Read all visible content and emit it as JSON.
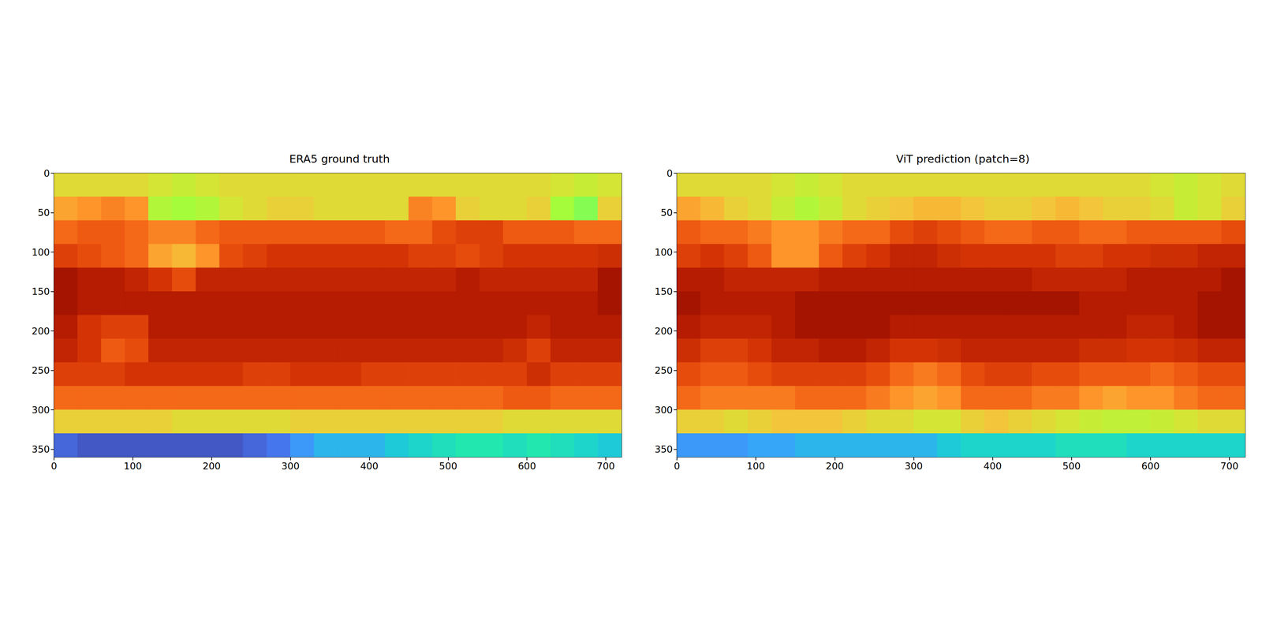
{
  "chart_data": [
    {
      "type": "heatmap",
      "title": "ERA5 ground truth",
      "color": "turbo",
      "grid": false,
      "xlim": [
        0,
        720
      ],
      "ylim": [
        0,
        360
      ],
      "xticks": [
        0,
        100,
        200,
        300,
        400,
        500,
        600,
        700
      ],
      "yticks": [
        0,
        50,
        100,
        150,
        200,
        250,
        300,
        350
      ],
      "x": [
        15,
        45,
        75,
        105,
        135,
        165,
        195,
        225,
        255,
        285,
        315,
        345,
        375,
        405,
        435,
        465,
        495,
        525,
        555,
        585,
        615,
        645,
        675,
        705
      ],
      "y": [
        15,
        45,
        75,
        105,
        135,
        165,
        195,
        225,
        255,
        285,
        315,
        345
      ],
      "color_range": [
        220,
        310
      ],
      "cells": [
        [
          274,
          274,
          274,
          274,
          272,
          270,
          272,
          274,
          274,
          274,
          274,
          274,
          274,
          274,
          274,
          274,
          274,
          274,
          274,
          274,
          274,
          272,
          270,
          272
        ],
        [
          283,
          285,
          287,
          285,
          267,
          265,
          267,
          272,
          274,
          276,
          276,
          274,
          274,
          274,
          274,
          287,
          285,
          276,
          274,
          274,
          276,
          265,
          262,
          276
        ],
        [
          290,
          292,
          292,
          290,
          287,
          287,
          290,
          292,
          292,
          292,
          292,
          292,
          292,
          292,
          290,
          290,
          294,
          296,
          296,
          292,
          292,
          292,
          290,
          290
        ],
        [
          296,
          294,
          292,
          290,
          283,
          280,
          285,
          294,
          296,
          298,
          298,
          298,
          298,
          298,
          298,
          296,
          296,
          294,
          296,
          298,
          298,
          298,
          298,
          299
        ],
        [
          305,
          303,
          303,
          301,
          298,
          294,
          301,
          301,
          301,
          301,
          301,
          301,
          301,
          301,
          301,
          301,
          301,
          303,
          301,
          301,
          301,
          301,
          301,
          305
        ],
        [
          305,
          303,
          303,
          303,
          303,
          303,
          303,
          303,
          303,
          303,
          303,
          303,
          303,
          303,
          303,
          303,
          303,
          303,
          303,
          303,
          303,
          303,
          303,
          305
        ],
        [
          303,
          298,
          296,
          296,
          303,
          303,
          303,
          303,
          303,
          303,
          303,
          303,
          303,
          303,
          303,
          303,
          303,
          303,
          303,
          303,
          301,
          303,
          303,
          303
        ],
        [
          301,
          298,
          292,
          294,
          301,
          301,
          301,
          301,
          301,
          301,
          301,
          301,
          301,
          301,
          301,
          301,
          301,
          301,
          301,
          299,
          296,
          301,
          301,
          301
        ],
        [
          296,
          296,
          296,
          298,
          298,
          298,
          298,
          298,
          296,
          296,
          298,
          298,
          298,
          296,
          296,
          296,
          296,
          296,
          296,
          296,
          299,
          296,
          296,
          296
        ],
        [
          290,
          290,
          290,
          290,
          290,
          290,
          290,
          290,
          290,
          290,
          290,
          290,
          290,
          290,
          290,
          290,
          290,
          290,
          290,
          292,
          292,
          290,
          290,
          290
        ],
        [
          276,
          276,
          276,
          276,
          276,
          274,
          274,
          274,
          274,
          274,
          276,
          276,
          276,
          276,
          276,
          276,
          276,
          276,
          276,
          274,
          274,
          274,
          274,
          274
        ],
        [
          231,
          229,
          229,
          229,
          229,
          229,
          229,
          229,
          231,
          233,
          238,
          242,
          242,
          242,
          245,
          247,
          249,
          251,
          251,
          249,
          251,
          249,
          247,
          245
        ]
      ]
    },
    {
      "type": "heatmap",
      "title": "ViT prediction (patch=8)",
      "color": "turbo",
      "grid": false,
      "xlim": [
        0,
        720
      ],
      "ylim": [
        0,
        360
      ],
      "xticks": [
        0,
        100,
        200,
        300,
        400,
        500,
        600,
        700
      ],
      "yticks": [
        0,
        50,
        100,
        150,
        200,
        250,
        300,
        350
      ],
      "x": [
        15,
        45,
        75,
        105,
        135,
        165,
        195,
        225,
        255,
        285,
        315,
        345,
        375,
        405,
        435,
        465,
        495,
        525,
        555,
        585,
        615,
        645,
        675,
        705
      ],
      "y": [
        15,
        45,
        75,
        105,
        135,
        165,
        195,
        225,
        255,
        285,
        315,
        345
      ],
      "color_range": [
        220,
        310
      ],
      "cells": [
        [
          274,
          274,
          274,
          274,
          272,
          270,
          272,
          274,
          274,
          274,
          274,
          274,
          274,
          274,
          274,
          274,
          274,
          274,
          274,
          274,
          272,
          270,
          272,
          274
        ],
        [
          283,
          280,
          276,
          274,
          270,
          267,
          270,
          274,
          276,
          278,
          280,
          280,
          278,
          276,
          276,
          278,
          280,
          278,
          276,
          276,
          274,
          270,
          272,
          276
        ],
        [
          292,
          290,
          290,
          288,
          285,
          285,
          288,
          290,
          290,
          294,
          296,
          294,
          292,
          290,
          290,
          292,
          292,
          290,
          290,
          292,
          292,
          292,
          292,
          294
        ],
        [
          296,
          298,
          296,
          292,
          285,
          285,
          292,
          296,
          298,
          301,
          301,
          299,
          298,
          298,
          298,
          298,
          296,
          296,
          298,
          298,
          299,
          299,
          301,
          301
        ],
        [
          303,
          303,
          301,
          301,
          301,
          301,
          303,
          303,
          303,
          303,
          303,
          303,
          303,
          303,
          303,
          301,
          301,
          301,
          301,
          303,
          303,
          303,
          303,
          305
        ],
        [
          305,
          303,
          303,
          303,
          303,
          305,
          305,
          305,
          305,
          305,
          305,
          305,
          305,
          305,
          305,
          305,
          305,
          303,
          303,
          303,
          303,
          303,
          305,
          305
        ],
        [
          303,
          301,
          301,
          301,
          303,
          305,
          305,
          305,
          305,
          303,
          303,
          303,
          303,
          303,
          303,
          303,
          303,
          303,
          303,
          301,
          301,
          303,
          305,
          305
        ],
        [
          299,
          296,
          296,
          298,
          301,
          301,
          303,
          303,
          301,
          298,
          298,
          299,
          301,
          301,
          301,
          301,
          301,
          299,
          299,
          298,
          298,
          299,
          301,
          301
        ],
        [
          294,
          292,
          292,
          294,
          296,
          296,
          296,
          296,
          294,
          290,
          288,
          290,
          294,
          296,
          296,
          294,
          294,
          292,
          292,
          292,
          290,
          292,
          294,
          294
        ],
        [
          290,
          288,
          288,
          288,
          288,
          290,
          290,
          290,
          288,
          285,
          283,
          285,
          290,
          290,
          290,
          288,
          288,
          285,
          283,
          285,
          285,
          288,
          290,
          290
        ],
        [
          276,
          276,
          274,
          276,
          278,
          278,
          278,
          276,
          274,
          274,
          272,
          272,
          276,
          278,
          276,
          274,
          272,
          270,
          269,
          269,
          270,
          272,
          274,
          274
        ],
        [
          238,
          238,
          238,
          240,
          240,
          242,
          242,
          242,
          242,
          242,
          242,
          245,
          247,
          247,
          247,
          247,
          249,
          249,
          249,
          247,
          247,
          247,
          247,
          247
        ]
      ]
    }
  ]
}
